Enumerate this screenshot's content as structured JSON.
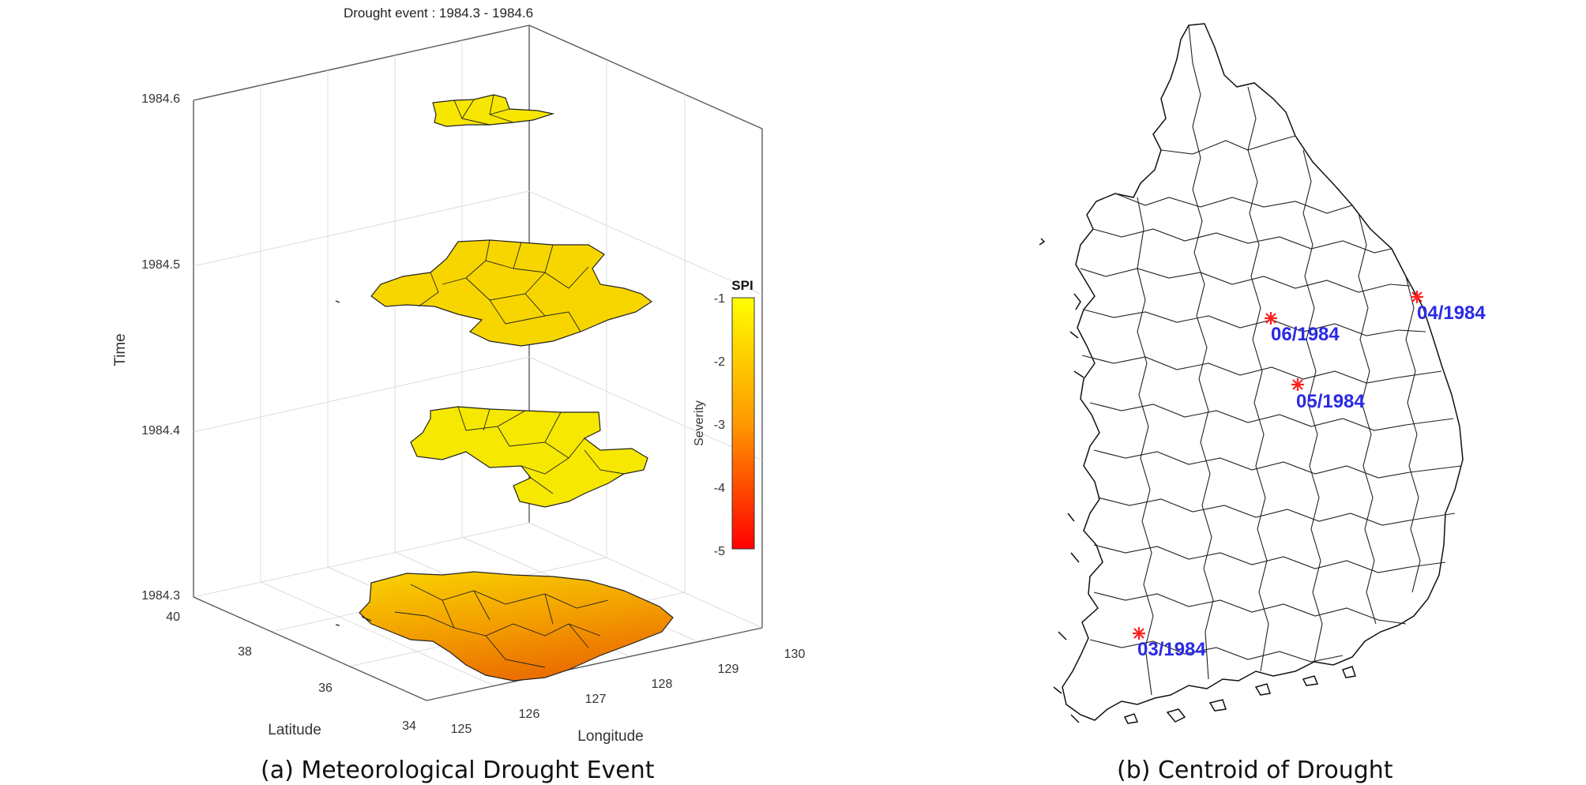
{
  "panel_a": {
    "caption": "(a) Meteorological Drought Event",
    "title": "Drought event : 1984.3 - 1984.6",
    "colorbar_title": "SPI",
    "colorbar_label": "Severity"
  },
  "panel_b": {
    "caption": "(b) Centroid of Drought"
  },
  "chart_data": [
    {
      "type": "3d-map",
      "title": "Drought event : 1984.3 - 1984.6",
      "xlabel": "Longitude",
      "ylabel": "Latitude",
      "zlabel": "Time",
      "xlim": [
        125,
        130
      ],
      "ylim": [
        34,
        40
      ],
      "zlim": [
        1984.3,
        1984.6
      ],
      "xticks": [
        "125",
        "126",
        "127",
        "128",
        "129",
        "130"
      ],
      "yticks": [
        "34",
        "36",
        "38",
        "40"
      ],
      "zticks": [
        "1984.3",
        "1984.4",
        "1984.5",
        "1984.6"
      ],
      "grid": true,
      "colorbar": {
        "title": "SPI",
        "label": "Severity",
        "ticks": [
          "-1",
          "-2",
          "-3",
          "-4",
          "-5"
        ],
        "range": [
          -5,
          -1
        ],
        "colors": [
          "#ff0000",
          "#ff8c00",
          "#ffff00"
        ]
      },
      "slices": [
        {
          "time": 1984.3,
          "extent": "south and west regions",
          "severity_color": "#f08a00"
        },
        {
          "time": 1984.4,
          "extent": "central and southeast regions",
          "severity_color": "#f5e600"
        },
        {
          "time": 1984.5,
          "extent": "central, southwest and southeast regions",
          "severity_color": "#f7d400"
        },
        {
          "time": 1984.6,
          "extent": "small northern region",
          "severity_color": "#f7e200"
        }
      ]
    },
    {
      "type": "scatter",
      "title": "",
      "series": [
        {
          "labels": [
            "03/1984",
            "04/1984",
            "05/1984",
            "06/1984"
          ],
          "x": [
            126.6,
            129.4,
            128.0,
            127.6
          ],
          "y": [
            34.9,
            37.7,
            36.8,
            37.4
          ],
          "marker_color": "#ff2020",
          "label_color": "#2a2ae6"
        }
      ]
    }
  ]
}
